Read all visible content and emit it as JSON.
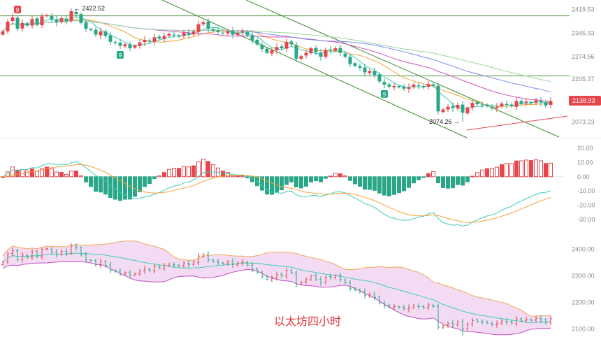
{
  "chart_data": {
    "type": "candlestick",
    "caption": "以太坊四小时",
    "colors": {
      "up": "#e5454b",
      "down": "#2aa788",
      "ma_fast": "#3ccdb8",
      "ma_mid": "#f2a33a",
      "ma_slow1": "#d452b9",
      "ma_slow2": "#7a8cf2",
      "ma_slow3": "#9cd69a",
      "channel": "#3a8a2c",
      "support": "#e8474e",
      "hline": "#5a9a45",
      "bb_upper": "#f0a95a",
      "bb_lower": "#c44ec0",
      "bb_fill": "#f3dcf3",
      "badge": "#2aa788",
      "badge_red": "#e5454b",
      "price_tag": "#e5454b"
    },
    "price_panel": {
      "y_ticks": [
        "2419.53",
        "2345.93",
        "2274.56",
        "2205.37",
        "2138.93",
        "2073.23"
      ],
      "ylim": [
        2040,
        2440
      ],
      "last_price": "2138.93",
      "high_label": "← 2422.52",
      "low_label": "2074.26 →",
      "high": 2422.52,
      "low": 2074.26,
      "horizontal_levels": [
        2400,
        2215
      ],
      "markers": [
        {
          "label": "9",
          "color": "red",
          "index": 3
        },
        {
          "label": "9",
          "color": "green",
          "index": 24
        },
        {
          "label": "9",
          "color": "green",
          "index": 78
        }
      ]
    },
    "macd_panel": {
      "y_ticks": [
        "20.00",
        "10.00",
        "0.00",
        "-10.00",
        "-20.00",
        "-30.00"
      ],
      "ylim": [
        -36,
        24
      ]
    },
    "boll_panel": {
      "y_ticks": [
        "2400.00",
        "2300.00",
        "2200.00",
        "2100.00"
      ],
      "ylim": [
        2080,
        2430
      ]
    },
    "closes": [
      2352,
      2382,
      2395,
      2360,
      2378,
      2370,
      2390,
      2372,
      2398,
      2402,
      2388,
      2380,
      2392,
      2384,
      2414,
      2405,
      2378,
      2360,
      2356,
      2342,
      2352,
      2338,
      2320,
      2316,
      2308,
      2312,
      2300,
      2308,
      2318,
      2326,
      2320,
      2334,
      2330,
      2338,
      2344,
      2340,
      2336,
      2348,
      2342,
      2352,
      2374,
      2380,
      2360,
      2354,
      2350,
      2346,
      2352,
      2342,
      2348,
      2352,
      2340,
      2324,
      2312,
      2298,
      2286,
      2294,
      2304,
      2300,
      2320,
      2312,
      2268,
      2276,
      2286,
      2300,
      2288,
      2274,
      2295,
      2294,
      2300,
      2286,
      2274,
      2252,
      2246,
      2240,
      2226,
      2230,
      2218,
      2198,
      2188,
      2182,
      2184,
      2180,
      2176,
      2180,
      2188,
      2184,
      2180,
      2190,
      2184,
      2106,
      2112,
      2120,
      2116,
      2126,
      2102,
      2118,
      2132,
      2128,
      2126,
      2122,
      2116,
      2120,
      2130,
      2126,
      2122,
      2138,
      2130,
      2136,
      2132,
      2140,
      2134,
      2124,
      2138
    ]
  }
}
